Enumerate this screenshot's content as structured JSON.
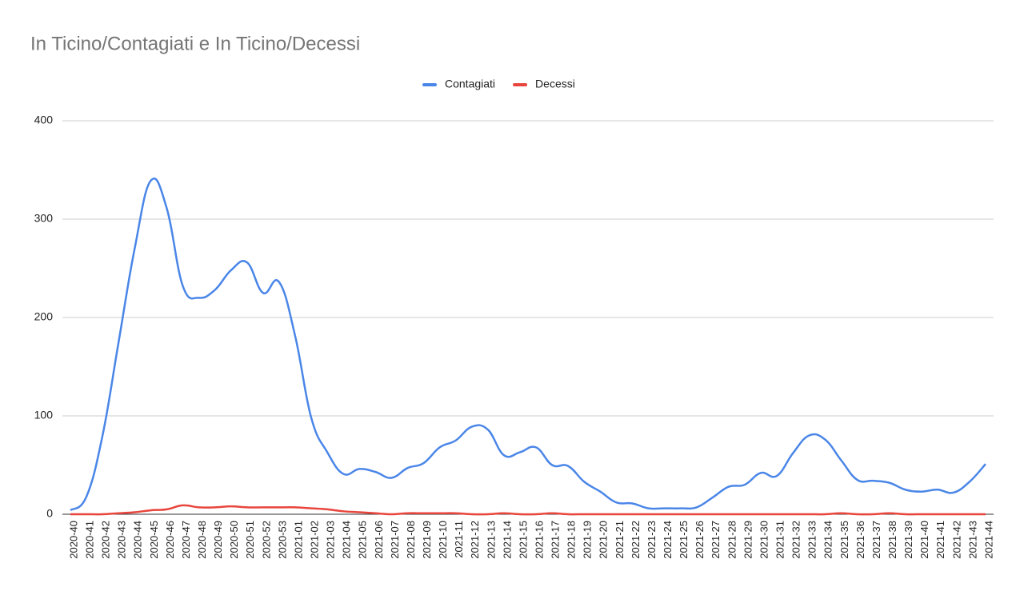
{
  "chart_data": {
    "type": "line",
    "title": "In Ticino/Contagiati e In Ticino/Decessi",
    "categories": [
      "2020-40",
      "2020-41",
      "2020-42",
      "2020-43",
      "2020-44",
      "2020-45",
      "2020-46",
      "2020-47",
      "2020-48",
      "2020-49",
      "2020-50",
      "2020-51",
      "2020-52",
      "2020-53",
      "2021-01",
      "2021-02",
      "2021-03",
      "2021-04",
      "2021-05",
      "2021-06",
      "2021-07",
      "2021-08",
      "2021-09",
      "2021-10",
      "2021-11",
      "2021-12",
      "2021-13",
      "2021-14",
      "2021-15",
      "2021-16",
      "2021-17",
      "2021-18",
      "2021-19",
      "2021-20",
      "2021-21",
      "2021-22",
      "2021-23",
      "2021-24",
      "2021-25",
      "2021-26",
      "2021-27",
      "2021-28",
      "2021-29",
      "2021-30",
      "2021-31",
      "2021-32",
      "2021-33",
      "2021-34",
      "2021-35",
      "2021-36",
      "2021-37",
      "2021-38",
      "2021-39",
      "2021-40",
      "2021-41",
      "2021-42",
      "2021-43",
      "2021-44"
    ],
    "series": [
      {
        "name": "Contagiati",
        "color": "#4a86e8",
        "values": [
          4,
          18,
          80,
          175,
          270,
          339,
          311,
          232,
          220,
          228,
          248,
          256,
          225,
          236,
          181,
          98,
          63,
          41,
          46,
          43,
          37,
          47,
          52,
          68,
          75,
          89,
          86,
          60,
          63,
          68,
          50,
          49,
          33,
          23,
          12,
          11,
          6,
          6,
          6,
          7,
          17,
          28,
          30,
          42,
          39,
          62,
          80,
          76,
          55,
          35,
          34,
          32,
          25,
          23,
          25,
          22,
          33,
          51
        ]
      },
      {
        "name": "Decessi",
        "color": "#e8453c",
        "values": [
          0,
          0,
          0,
          1,
          2,
          4,
          5,
          9,
          7,
          7,
          8,
          7,
          7,
          7,
          7,
          6,
          5,
          3,
          2,
          1,
          0,
          1,
          1,
          1,
          1,
          0,
          0,
          1,
          0,
          0,
          1,
          0,
          0,
          0,
          0,
          0,
          0,
          0,
          0,
          0,
          0,
          0,
          0,
          0,
          0,
          0,
          0,
          0,
          1,
          0,
          0,
          1,
          0,
          0,
          0,
          0,
          0,
          0
        ]
      }
    ],
    "ylim": [
      0,
      400
    ],
    "yticks": [
      0,
      100,
      200,
      300,
      400
    ],
    "grid": true,
    "legend": "top"
  }
}
